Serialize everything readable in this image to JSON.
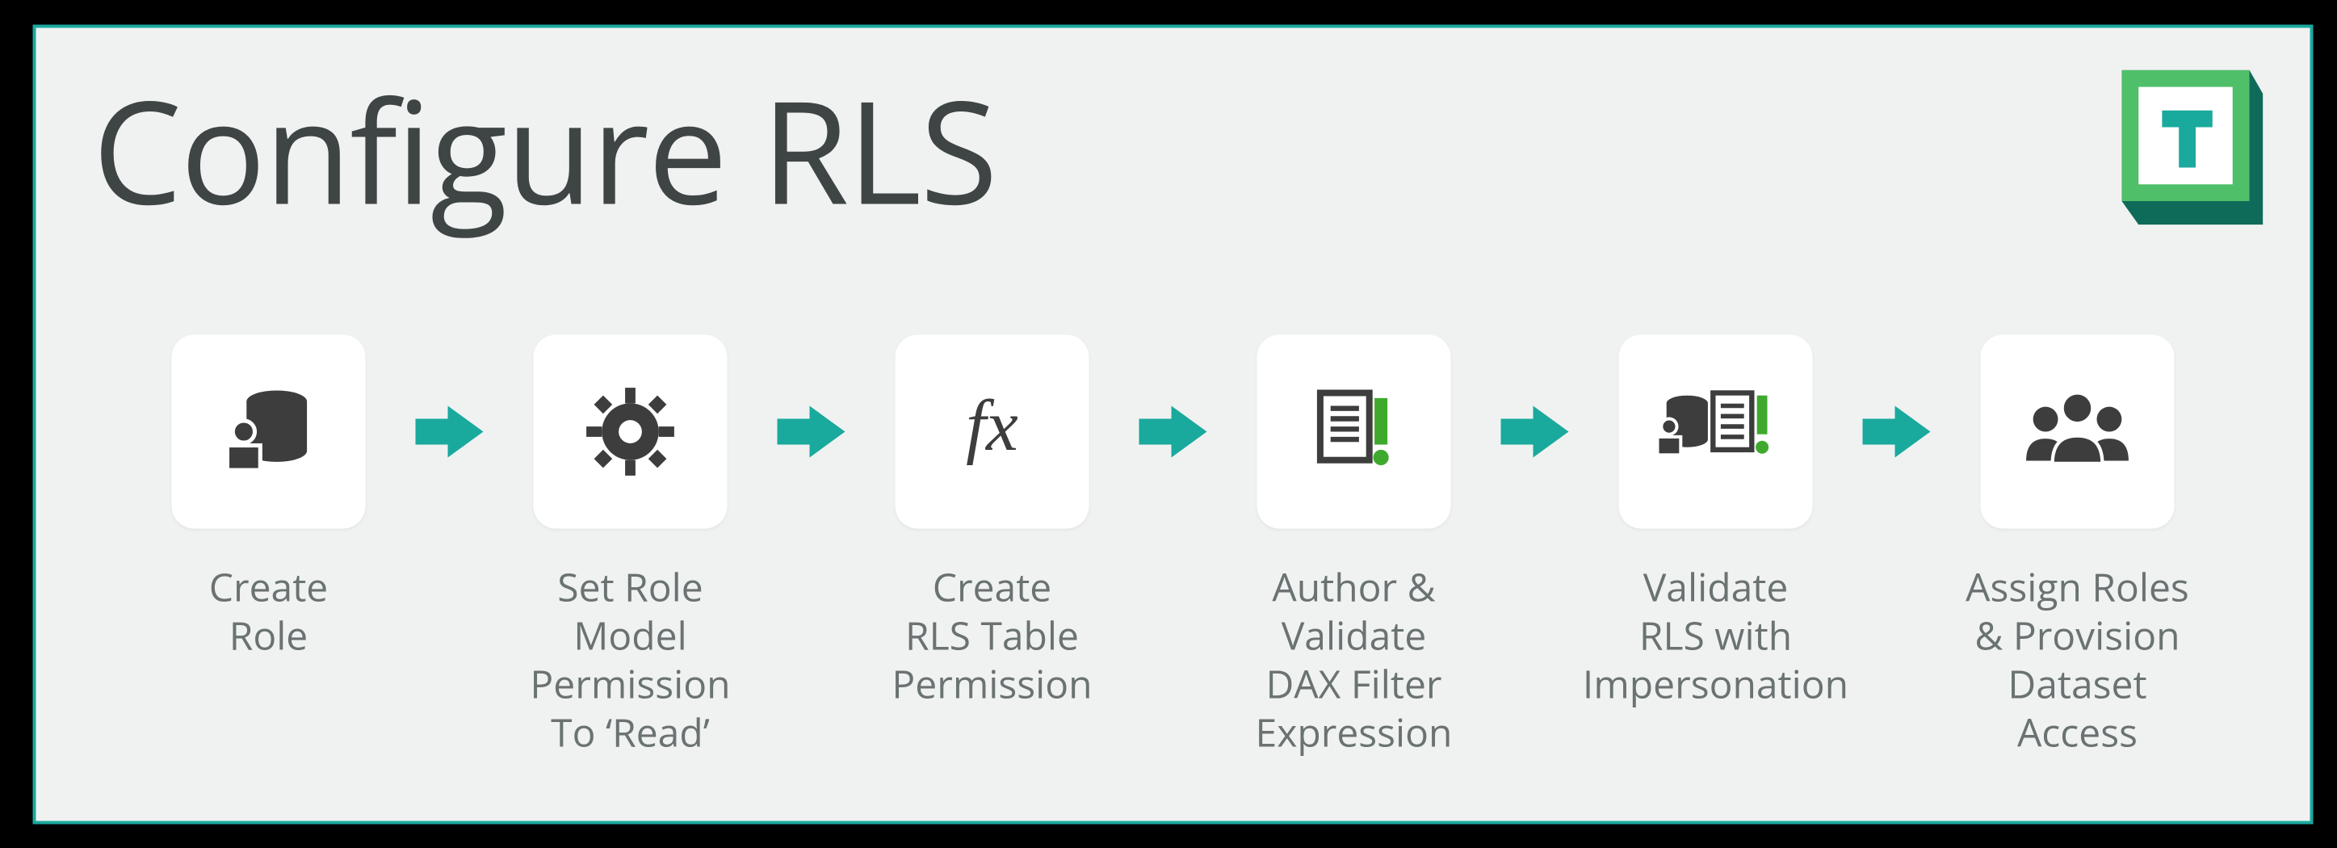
{
  "title": "Configure RLS",
  "colors": {
    "panel_bg": "#f0f2f2",
    "border": "#1aa99d",
    "title_text": "#3f4444",
    "label_text": "#6b7272",
    "tile_bg": "#ffffff",
    "arrow": "#1aa99d",
    "icon_dark": "#3d3d3d",
    "icon_green": "#3fa92e",
    "logo_teal": "#1aa99d",
    "logo_green": "#4fbf6a",
    "logo_dark": "#0f6b59"
  },
  "logo_letter": "T",
  "steps": [
    {
      "icon": "role",
      "label": "Create\nRole"
    },
    {
      "icon": "gear",
      "label": "Set Role\nModel Permission\nTo ‘Read’"
    },
    {
      "icon": "fx",
      "label": "Create\nRLS Table\nPermission"
    },
    {
      "icon": "doc",
      "label": "Author & Validate\nDAX Filter\nExpression"
    },
    {
      "icon": "role-doc",
      "label": "Validate\nRLS with\nImpersonation"
    },
    {
      "icon": "people",
      "label": "Assign Roles\n& Provision\nDataset\nAccess"
    }
  ],
  "fx_text": "fx"
}
